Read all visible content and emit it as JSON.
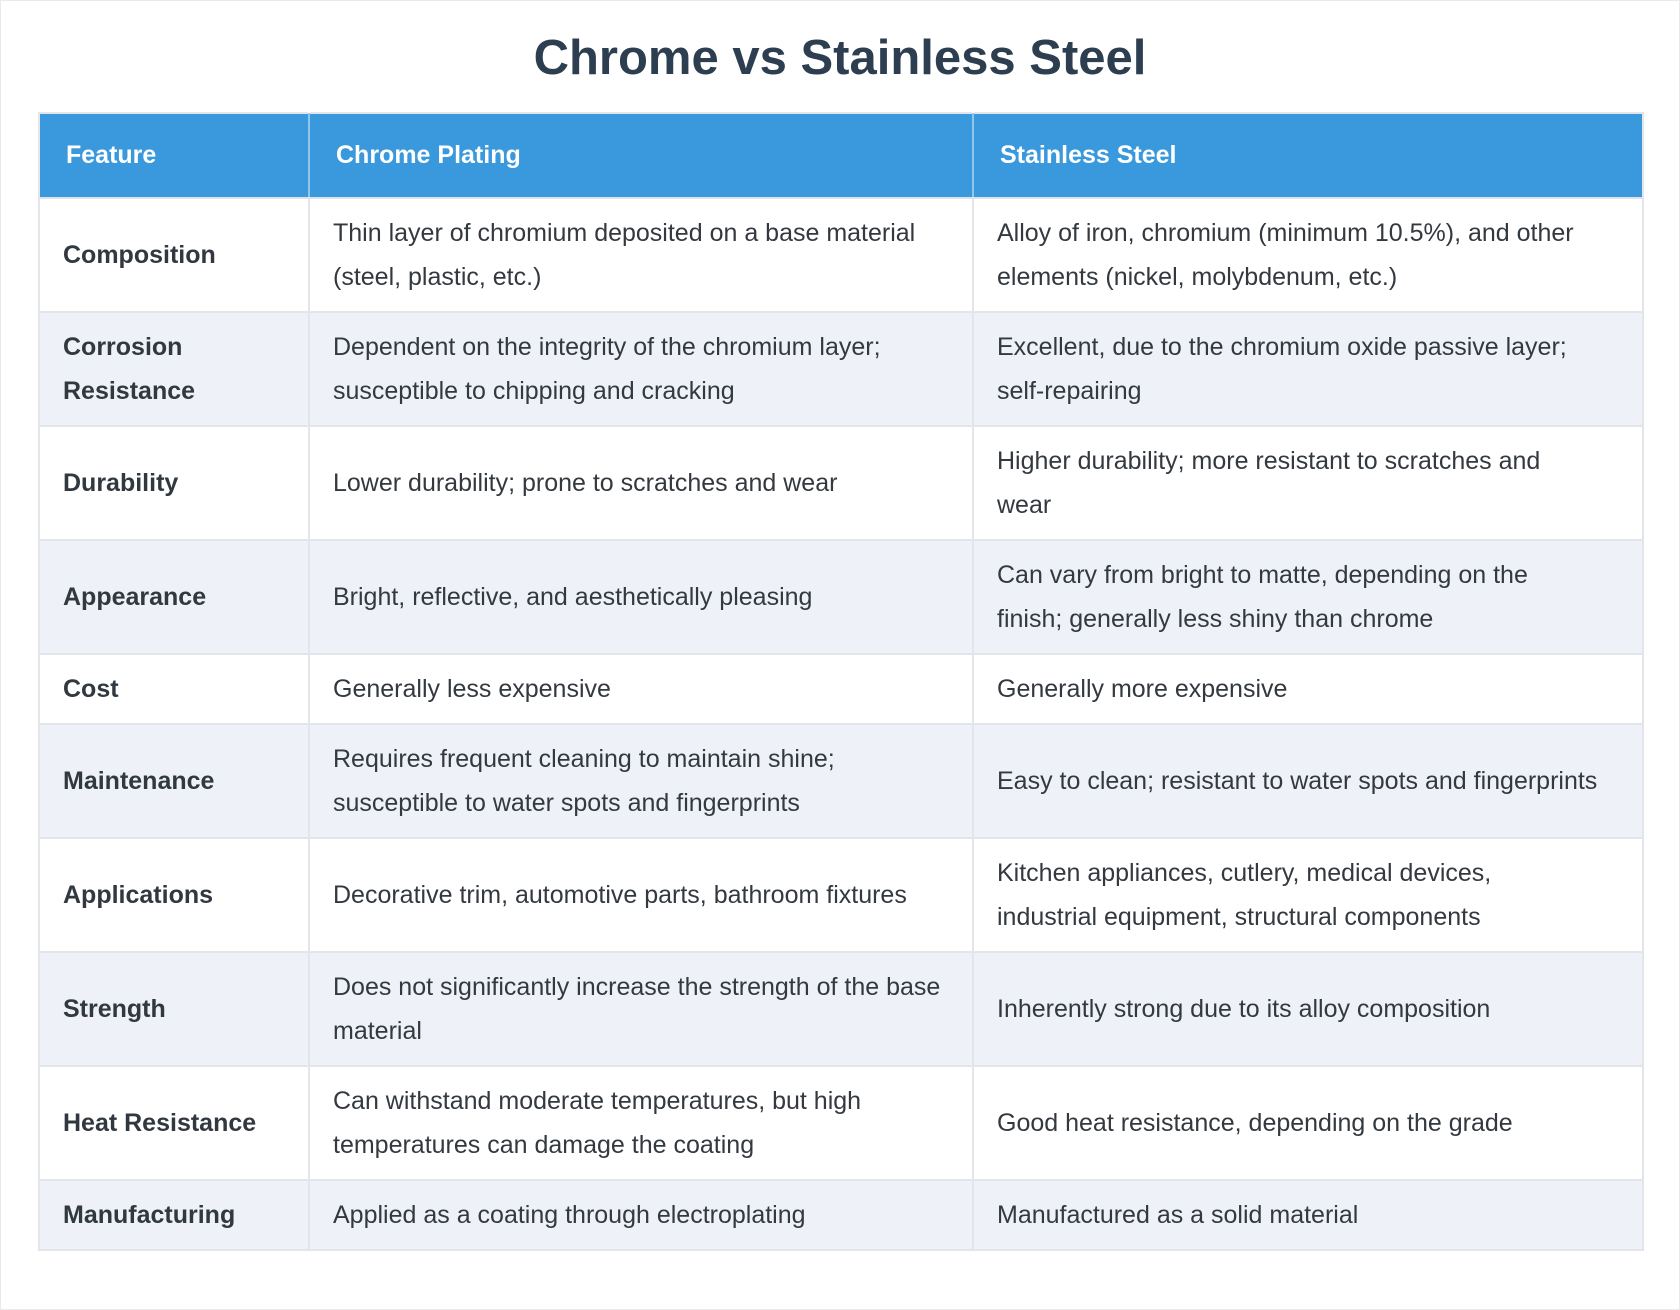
{
  "page": {
    "title": "Chrome vs Stainless Steel"
  },
  "colors": {
    "header_background": "#3a99dc",
    "header_text": "#ffffff",
    "title_text": "#2c3e50",
    "body_text": "#33393f",
    "stripe_row_background": "#eef2f8",
    "border": "#e2e5e9"
  },
  "table": {
    "columns": [
      "Feature",
      "Chrome Plating",
      "Stainless Steel"
    ],
    "rows": [
      {
        "feature": "Composition",
        "chrome": "Thin layer of chromium deposited on a base material (steel, plastic, etc.)",
        "stainless": "Alloy of iron, chromium (minimum 10.5%), and other elements (nickel, molybdenum, etc.)"
      },
      {
        "feature": "Corrosion Resistance",
        "chrome": "Dependent on the integrity of the chromium layer; susceptible to chipping and cracking",
        "stainless": "Excellent, due to the chromium oxide passive layer; self-repairing"
      },
      {
        "feature": "Durability",
        "chrome": "Lower durability; prone to scratches and wear",
        "stainless": "Higher durability; more resistant to scratches and wear"
      },
      {
        "feature": "Appearance",
        "chrome": "Bright, reflective, and aesthetically pleasing",
        "stainless": "Can vary from bright to matte, depending on the finish; generally less shiny than chrome"
      },
      {
        "feature": "Cost",
        "chrome": "Generally less expensive",
        "stainless": "Generally more expensive"
      },
      {
        "feature": "Maintenance",
        "chrome": "Requires frequent cleaning to maintain shine; susceptible to water spots and fingerprints",
        "stainless": "Easy to clean; resistant to water spots and fingerprints"
      },
      {
        "feature": "Applications",
        "chrome": "Decorative trim, automotive parts, bathroom fixtures",
        "stainless": "Kitchen appliances, cutlery, medical devices, industrial equipment, structural components"
      },
      {
        "feature": "Strength",
        "chrome": "Does not significantly increase the strength of the base material",
        "stainless": "Inherently strong due to its alloy composition"
      },
      {
        "feature": "Heat Resistance",
        "chrome": "Can withstand moderate temperatures, but high temperatures can damage the coating",
        "stainless": "Good heat resistance, depending on the grade"
      },
      {
        "feature": "Manufacturing",
        "chrome": "Applied as a coating through electroplating",
        "stainless": "Manufactured as a solid material"
      }
    ]
  }
}
